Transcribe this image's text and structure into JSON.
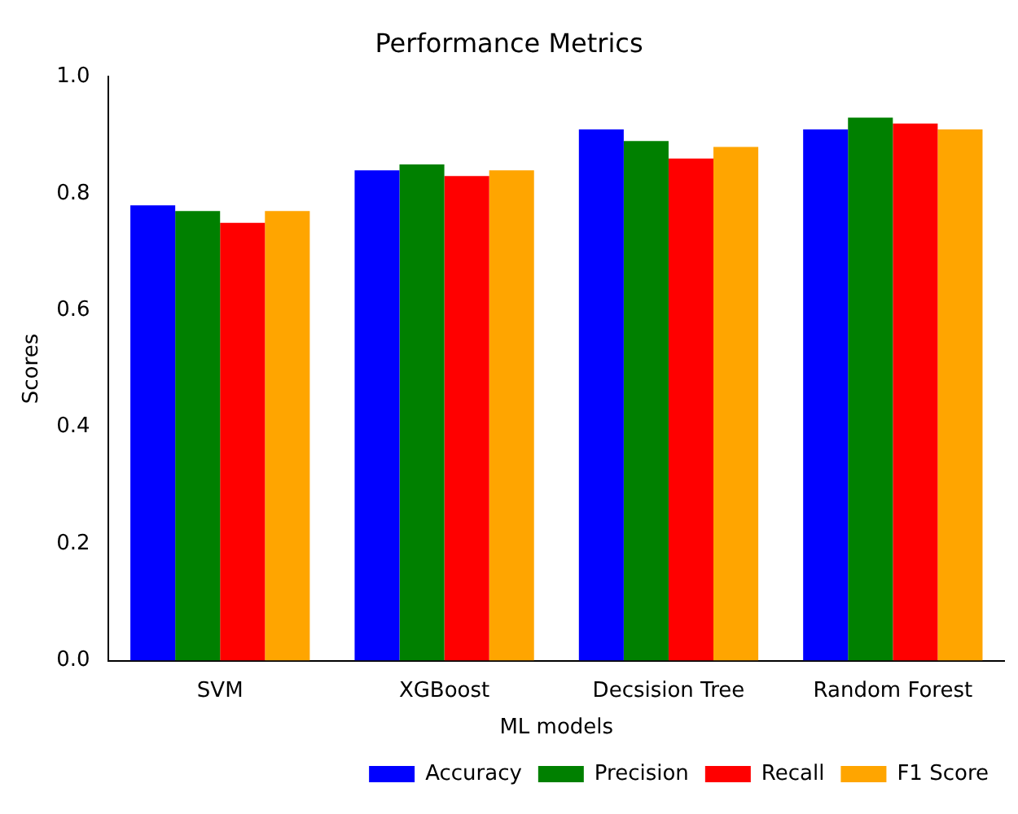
{
  "chart_data": {
    "type": "bar",
    "title": "Performance Metrics",
    "xlabel": "ML models",
    "ylabel": "Scores",
    "categories": [
      "SVM",
      "XGBoost",
      "Decsision Tree",
      "Random Forest"
    ],
    "series": [
      {
        "name": "Accuracy",
        "color": "#0000ff",
        "values": [
          0.78,
          0.84,
          0.91,
          0.91
        ]
      },
      {
        "name": "Precision",
        "color": "#008000",
        "values": [
          0.77,
          0.85,
          0.89,
          0.93
        ]
      },
      {
        "name": "Recall",
        "color": "#ff0000",
        "values": [
          0.75,
          0.83,
          0.86,
          0.92
        ]
      },
      {
        "name": "F1 Score",
        "color": "#ffa500",
        "values": [
          0.77,
          0.84,
          0.88,
          0.91
        ]
      }
    ],
    "ylim": [
      0,
      1
    ],
    "yticks": [
      {
        "value": 0,
        "label": "0.0"
      },
      0.2,
      0.4,
      0.6,
      0.8,
      {
        "value": 1,
        "label": "1.0"
      }
    ],
    "legend": "bottom right",
    "grid": false
  }
}
